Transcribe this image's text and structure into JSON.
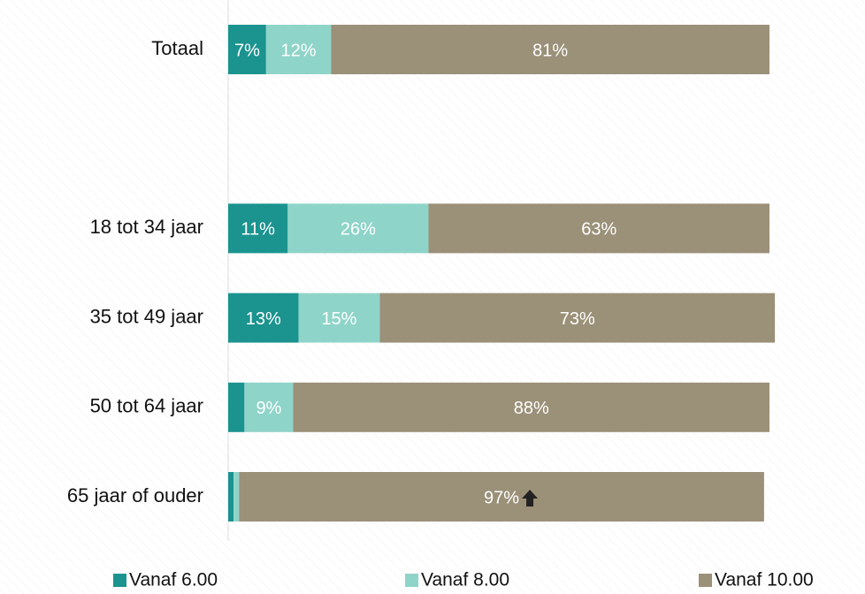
{
  "chart_data": {
    "type": "stacked-barh",
    "categories": [
      "Totaal",
      null,
      "18 tot 34 jaar",
      "35 tot 49 jaar",
      "50 tot 64 jaar",
      "65 jaar of ouder"
    ],
    "xlim": [
      0,
      100
    ],
    "series": [
      {
        "name": "Vanaf 6.00",
        "color": "#1b938f",
        "values": [
          7,
          null,
          11,
          13,
          3,
          1
        ],
        "value_labels": [
          "7%",
          null,
          "11%",
          "13%",
          null,
          null
        ]
      },
      {
        "name": "Vanaf 8.00",
        "color": "#8fd4c9",
        "values": [
          12,
          null,
          26,
          15,
          9,
          1
        ],
        "value_labels": [
          "12%",
          null,
          "26%",
          "15%",
          "9%",
          null
        ]
      },
      {
        "name": "Vanaf 10.00",
        "color": "#9b9078",
        "values": [
          81,
          null,
          63,
          73,
          88,
          97
        ],
        "value_labels": [
          "81%",
          null,
          "63%",
          "73%",
          "88%",
          "97%"
        ]
      }
    ],
    "legend": "bottom"
  }
}
